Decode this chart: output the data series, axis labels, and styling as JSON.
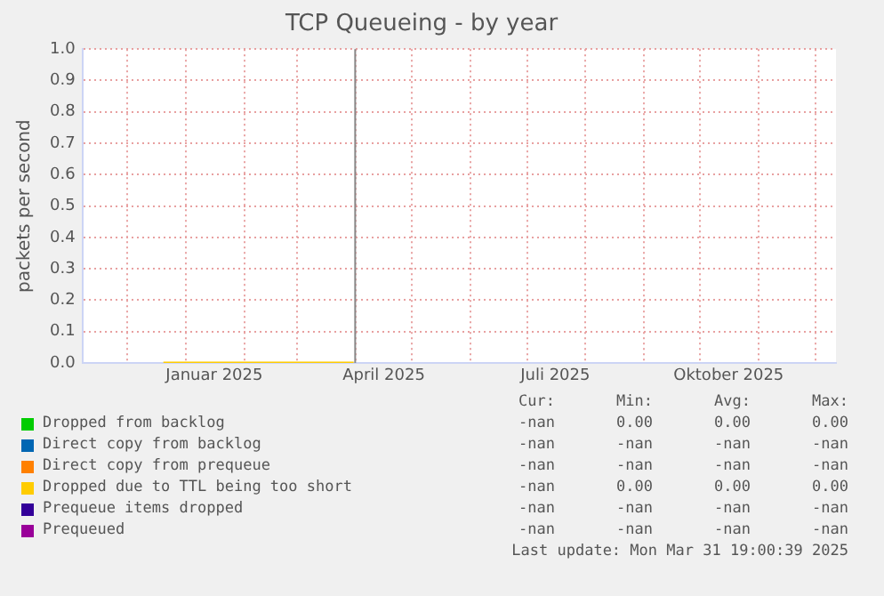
{
  "chart_data": {
    "type": "line",
    "title": "TCP Queueing - by year",
    "ylabel": "packets per second",
    "xlim": [
      "2024-11-07",
      "2025-12-12"
    ],
    "xticks": [
      {
        "value": "2024-12-01",
        "label": null
      },
      {
        "value": "2025-01-01",
        "label": null
      },
      {
        "value": "2025-01-16",
        "label": "Januar 2025"
      },
      {
        "value": "2025-02-01",
        "label": null
      },
      {
        "value": "2025-03-01",
        "label": null
      },
      {
        "value": "2025-04-01",
        "label": null
      },
      {
        "value": "2025-04-16",
        "label": "April 2025"
      },
      {
        "value": "2025-05-01",
        "label": null
      },
      {
        "value": "2025-06-01",
        "label": null
      },
      {
        "value": "2025-07-01",
        "label": null
      },
      {
        "value": "2025-07-16",
        "label": "Juli 2025"
      },
      {
        "value": "2025-08-01",
        "label": null
      },
      {
        "value": "2025-09-01",
        "label": null
      },
      {
        "value": "2025-10-01",
        "label": null
      },
      {
        "value": "2025-10-16",
        "label": "Oktober 2025"
      },
      {
        "value": "2025-11-01",
        "label": null
      },
      {
        "value": "2025-12-01",
        "label": null
      }
    ],
    "ylim": [
      0,
      1
    ],
    "yticks": [
      {
        "value": 0,
        "label": "0.0"
      },
      0.1,
      0.2,
      0.3,
      0.4,
      0.5,
      0.6,
      0.7,
      0.8,
      0.9,
      {
        "value": 1,
        "label": "1.0"
      }
    ],
    "grid": true,
    "legend": "bottom",
    "marker": "none",
    "series": [
      {
        "name": "Dropped from backlog",
        "color": "#00cc00"
      },
      {
        "name": "Direct copy from backlog",
        "color": "#0066b3"
      },
      {
        "name": "Direct copy from prequeue",
        "color": "#ff8000"
      },
      {
        "name": "Dropped due to TTL being too short",
        "color": "#ffcc00",
        "x": [
          "2024-12-20",
          "2025-03-31"
        ],
        "values": [
          0,
          0
        ]
      },
      {
        "name": "Prequeue items dropped",
        "color": "#330099"
      },
      {
        "name": "Prequeued",
        "color": "#990099"
      }
    ],
    "ref_lines": [
      {
        "axis": "x",
        "value": "2025-03-31T19:00",
        "color": "#888888"
      }
    ],
    "annotations": [
      "Cur:",
      "Min:",
      "Avg:",
      "Max:",
      "-nan 0.00 0.00 0.00",
      "-nan -nan -nan -nan",
      "-nan -nan -nan -nan",
      "-nan 0.00 0.00 0.00",
      "-nan -nan -nan -nan",
      "-nan -nan -nan -nan",
      "Last update: Mon Mar 31 19:00:39 2025"
    ]
  }
}
